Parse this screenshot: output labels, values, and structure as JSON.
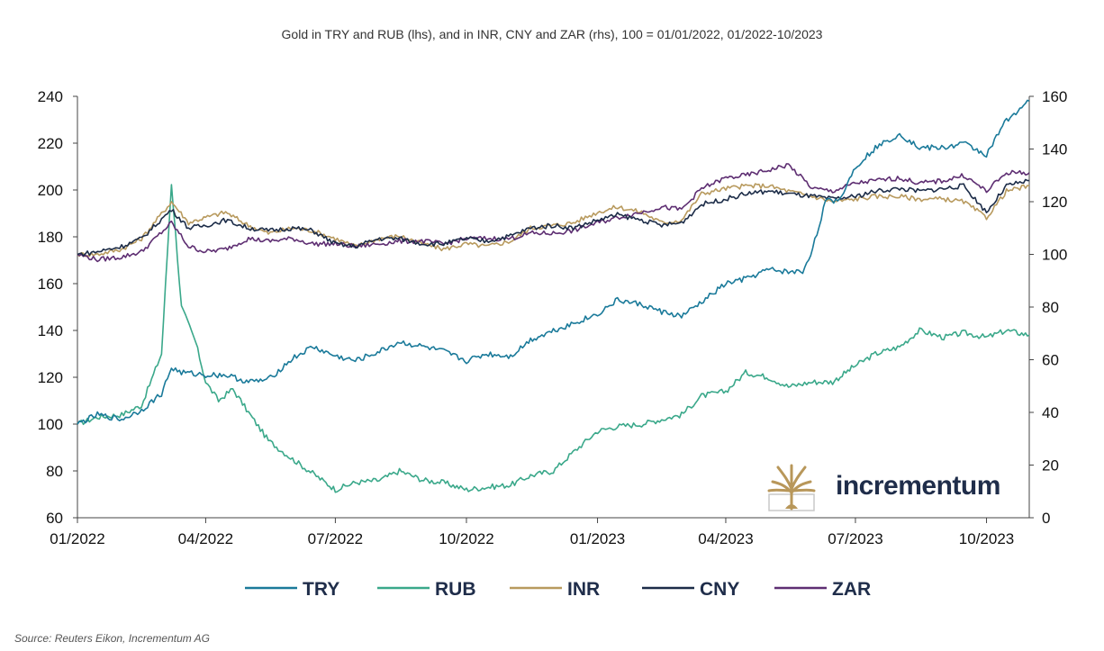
{
  "chart_data": {
    "type": "line",
    "title": "Gold in TRY and RUB (lhs), and in INR, CNY and ZAR (rhs), 100 = 01/01/2022, 01/2022-10/2023",
    "x_range": [
      "2022-01-01",
      "2023-10-31"
    ],
    "x_ticks": [
      {
        "date": "2022-01-01",
        "label": "01/2022"
      },
      {
        "date": "2022-04-01",
        "label": "04/2022"
      },
      {
        "date": "2022-07-01",
        "label": "07/2022"
      },
      {
        "date": "2022-10-01",
        "label": "10/2022"
      },
      {
        "date": "2023-01-01",
        "label": "01/2023"
      },
      {
        "date": "2023-04-01",
        "label": "04/2023"
      },
      {
        "date": "2023-07-01",
        "label": "07/2023"
      },
      {
        "date": "2023-10-01",
        "label": "10/2023"
      }
    ],
    "y_left": {
      "range": [
        60,
        240
      ],
      "ticks": [
        60,
        80,
        100,
        120,
        140,
        160,
        180,
        200,
        220,
        240
      ]
    },
    "y_right": {
      "range": [
        0,
        160
      ],
      "ticks": [
        0,
        20,
        40,
        60,
        80,
        100,
        120,
        140,
        160
      ]
    },
    "grid": false,
    "legend_position": "bottom",
    "series": [
      {
        "name": "TRY",
        "axis": "left",
        "color": "#1a7a9a",
        "points": [
          [
            "2022-01-01",
            100
          ],
          [
            "2022-01-15",
            104
          ],
          [
            "2022-02-01",
            102
          ],
          [
            "2022-02-15",
            106
          ],
          [
            "2022-03-01",
            113
          ],
          [
            "2022-03-08",
            124
          ],
          [
            "2022-03-15",
            122
          ],
          [
            "2022-04-01",
            121
          ],
          [
            "2022-04-15",
            121
          ],
          [
            "2022-05-01",
            118
          ],
          [
            "2022-05-15",
            119
          ],
          [
            "2022-06-01",
            128
          ],
          [
            "2022-06-15",
            133
          ],
          [
            "2022-07-01",
            129
          ],
          [
            "2022-07-15",
            127
          ],
          [
            "2022-08-01",
            131
          ],
          [
            "2022-08-15",
            135
          ],
          [
            "2022-09-01",
            133
          ],
          [
            "2022-09-15",
            131
          ],
          [
            "2022-10-01",
            127
          ],
          [
            "2022-10-15",
            130
          ],
          [
            "2022-11-01",
            129
          ],
          [
            "2022-11-15",
            136
          ],
          [
            "2022-12-01",
            140
          ],
          [
            "2022-12-15",
            143
          ],
          [
            "2023-01-01",
            147
          ],
          [
            "2023-01-15",
            153
          ],
          [
            "2023-02-01",
            151
          ],
          [
            "2023-02-15",
            148
          ],
          [
            "2023-03-01",
            146
          ],
          [
            "2023-03-15",
            152
          ],
          [
            "2023-04-01",
            160
          ],
          [
            "2023-04-15",
            162
          ],
          [
            "2023-05-01",
            166
          ],
          [
            "2023-05-15",
            165
          ],
          [
            "2023-05-25",
            165
          ],
          [
            "2023-06-01",
            175
          ],
          [
            "2023-06-10",
            195
          ],
          [
            "2023-06-20",
            196
          ],
          [
            "2023-07-01",
            210
          ],
          [
            "2023-07-15",
            218
          ],
          [
            "2023-08-01",
            224
          ],
          [
            "2023-08-15",
            218
          ],
          [
            "2023-09-01",
            218
          ],
          [
            "2023-09-15",
            220
          ],
          [
            "2023-10-01",
            215
          ],
          [
            "2023-10-15",
            230
          ],
          [
            "2023-10-31",
            238
          ]
        ]
      },
      {
        "name": "RUB",
        "axis": "left",
        "color": "#3aa88a",
        "points": [
          [
            "2022-01-01",
            100
          ],
          [
            "2022-01-15",
            103
          ],
          [
            "2022-02-01",
            104
          ],
          [
            "2022-02-15",
            108
          ],
          [
            "2022-03-01",
            130
          ],
          [
            "2022-03-08",
            203
          ],
          [
            "2022-03-15",
            150
          ],
          [
            "2022-03-25",
            135
          ],
          [
            "2022-04-01",
            118
          ],
          [
            "2022-04-10",
            110
          ],
          [
            "2022-04-20",
            115
          ],
          [
            "2022-05-01",
            105
          ],
          [
            "2022-05-15",
            93
          ],
          [
            "2022-06-01",
            85
          ],
          [
            "2022-06-15",
            79
          ],
          [
            "2022-07-01",
            72
          ],
          [
            "2022-07-15",
            75
          ],
          [
            "2022-08-01",
            76
          ],
          [
            "2022-08-15",
            80
          ],
          [
            "2022-09-01",
            76
          ],
          [
            "2022-09-15",
            75
          ],
          [
            "2022-10-01",
            72
          ],
          [
            "2022-10-15",
            73
          ],
          [
            "2022-11-01",
            74
          ],
          [
            "2022-11-15",
            78
          ],
          [
            "2022-12-01",
            80
          ],
          [
            "2022-12-15",
            88
          ],
          [
            "2023-01-01",
            97
          ],
          [
            "2023-01-15",
            99
          ],
          [
            "2023-02-01",
            100
          ],
          [
            "2023-02-15",
            102
          ],
          [
            "2023-03-01",
            104
          ],
          [
            "2023-03-15",
            112
          ],
          [
            "2023-04-01",
            114
          ],
          [
            "2023-04-15",
            122
          ],
          [
            "2023-05-01",
            120
          ],
          [
            "2023-05-15",
            116
          ],
          [
            "2023-06-01",
            118
          ],
          [
            "2023-06-15",
            118
          ],
          [
            "2023-07-01",
            125
          ],
          [
            "2023-07-15",
            130
          ],
          [
            "2023-08-01",
            133
          ],
          [
            "2023-08-15",
            140
          ],
          [
            "2023-09-01",
            137
          ],
          [
            "2023-09-15",
            139
          ],
          [
            "2023-10-01",
            137
          ],
          [
            "2023-10-15",
            140
          ],
          [
            "2023-10-31",
            138
          ]
        ]
      },
      {
        "name": "INR",
        "axis": "right",
        "color": "#b89a5e",
        "points": [
          [
            "2022-01-01",
            100
          ],
          [
            "2022-01-15",
            100
          ],
          [
            "2022-02-01",
            102
          ],
          [
            "2022-02-15",
            106
          ],
          [
            "2022-03-08",
            120
          ],
          [
            "2022-03-20",
            112
          ],
          [
            "2022-04-01",
            114
          ],
          [
            "2022-04-15",
            116
          ],
          [
            "2022-05-01",
            111
          ],
          [
            "2022-05-15",
            108
          ],
          [
            "2022-06-01",
            110
          ],
          [
            "2022-06-15",
            109
          ],
          [
            "2022-07-01",
            106
          ],
          [
            "2022-07-15",
            103
          ],
          [
            "2022-08-01",
            106
          ],
          [
            "2022-08-15",
            107
          ],
          [
            "2022-09-01",
            104
          ],
          [
            "2022-09-15",
            102
          ],
          [
            "2022-10-01",
            104
          ],
          [
            "2022-10-15",
            103
          ],
          [
            "2022-11-01",
            105
          ],
          [
            "2022-11-15",
            110
          ],
          [
            "2022-12-01",
            111
          ],
          [
            "2022-12-15",
            112
          ],
          [
            "2023-01-01",
            116
          ],
          [
            "2023-01-15",
            118
          ],
          [
            "2023-02-01",
            116
          ],
          [
            "2023-02-15",
            112
          ],
          [
            "2023-03-01",
            113
          ],
          [
            "2023-03-15",
            123
          ],
          [
            "2023-04-01",
            125
          ],
          [
            "2023-04-15",
            126
          ],
          [
            "2023-05-01",
            126
          ],
          [
            "2023-05-15",
            124
          ],
          [
            "2023-06-01",
            122
          ],
          [
            "2023-06-15",
            120
          ],
          [
            "2023-07-01",
            121
          ],
          [
            "2023-07-15",
            122
          ],
          [
            "2023-08-01",
            122
          ],
          [
            "2023-08-15",
            121
          ],
          [
            "2023-09-01",
            121
          ],
          [
            "2023-09-15",
            120
          ],
          [
            "2023-10-01",
            114
          ],
          [
            "2023-10-15",
            124
          ],
          [
            "2023-10-31",
            126
          ]
        ]
      },
      {
        "name": "CNY",
        "axis": "right",
        "color": "#1c2c48",
        "points": [
          [
            "2022-01-01",
            100
          ],
          [
            "2022-01-15",
            101
          ],
          [
            "2022-02-01",
            103
          ],
          [
            "2022-02-15",
            106
          ],
          [
            "2022-03-08",
            117
          ],
          [
            "2022-03-20",
            110
          ],
          [
            "2022-04-01",
            111
          ],
          [
            "2022-04-15",
            113
          ],
          [
            "2022-05-01",
            110
          ],
          [
            "2022-05-15",
            109
          ],
          [
            "2022-06-01",
            110
          ],
          [
            "2022-06-15",
            109
          ],
          [
            "2022-07-01",
            104
          ],
          [
            "2022-07-15",
            103
          ],
          [
            "2022-08-01",
            106
          ],
          [
            "2022-08-15",
            106
          ],
          [
            "2022-09-01",
            104
          ],
          [
            "2022-09-15",
            104
          ],
          [
            "2022-10-01",
            106
          ],
          [
            "2022-10-15",
            105
          ],
          [
            "2022-11-01",
            107
          ],
          [
            "2022-11-15",
            110
          ],
          [
            "2022-12-01",
            111
          ],
          [
            "2022-12-15",
            110
          ],
          [
            "2023-01-01",
            113
          ],
          [
            "2023-01-15",
            115
          ],
          [
            "2023-02-01",
            113
          ],
          [
            "2023-02-15",
            111
          ],
          [
            "2023-03-01",
            112
          ],
          [
            "2023-03-15",
            119
          ],
          [
            "2023-04-01",
            121
          ],
          [
            "2023-04-15",
            123
          ],
          [
            "2023-05-01",
            124
          ],
          [
            "2023-05-15",
            123
          ],
          [
            "2023-06-01",
            122
          ],
          [
            "2023-06-15",
            121
          ],
          [
            "2023-07-01",
            122
          ],
          [
            "2023-07-15",
            124
          ],
          [
            "2023-08-01",
            125
          ],
          [
            "2023-08-15",
            124
          ],
          [
            "2023-09-01",
            125
          ],
          [
            "2023-09-15",
            126
          ],
          [
            "2023-10-01",
            116
          ],
          [
            "2023-10-15",
            126
          ],
          [
            "2023-10-31",
            128
          ]
        ]
      },
      {
        "name": "ZAR",
        "axis": "right",
        "color": "#5e2e72",
        "points": [
          [
            "2022-01-01",
            100
          ],
          [
            "2022-01-15",
            98
          ],
          [
            "2022-02-01",
            99
          ],
          [
            "2022-02-15",
            101
          ],
          [
            "2022-03-08",
            112
          ],
          [
            "2022-03-20",
            103
          ],
          [
            "2022-04-01",
            101
          ],
          [
            "2022-04-15",
            102
          ],
          [
            "2022-05-01",
            106
          ],
          [
            "2022-05-15",
            105
          ],
          [
            "2022-06-01",
            106
          ],
          [
            "2022-06-15",
            104
          ],
          [
            "2022-07-01",
            104
          ],
          [
            "2022-07-15",
            103
          ],
          [
            "2022-08-01",
            104
          ],
          [
            "2022-08-15",
            105
          ],
          [
            "2022-09-01",
            105
          ],
          [
            "2022-09-15",
            104
          ],
          [
            "2022-10-01",
            106
          ],
          [
            "2022-10-15",
            106
          ],
          [
            "2022-11-01",
            106
          ],
          [
            "2022-11-15",
            108
          ],
          [
            "2022-12-01",
            108
          ],
          [
            "2022-12-15",
            109
          ],
          [
            "2023-01-01",
            112
          ],
          [
            "2023-01-15",
            114
          ],
          [
            "2023-02-01",
            116
          ],
          [
            "2023-02-15",
            118
          ],
          [
            "2023-03-01",
            117
          ],
          [
            "2023-03-15",
            125
          ],
          [
            "2023-04-01",
            129
          ],
          [
            "2023-04-15",
            130
          ],
          [
            "2023-05-01",
            132
          ],
          [
            "2023-05-15",
            134
          ],
          [
            "2023-06-01",
            125
          ],
          [
            "2023-06-15",
            124
          ],
          [
            "2023-07-01",
            127
          ],
          [
            "2023-07-15",
            128
          ],
          [
            "2023-08-01",
            129
          ],
          [
            "2023-08-15",
            127
          ],
          [
            "2023-09-01",
            128
          ],
          [
            "2023-09-15",
            130
          ],
          [
            "2023-10-01",
            124
          ],
          [
            "2023-10-15",
            131
          ],
          [
            "2023-10-31",
            131
          ]
        ]
      }
    ]
  },
  "source_text": "Source: Reuters Eikon, Incrementum AG",
  "logo": {
    "text": "incrementum",
    "icon": "tree-logo-icon",
    "gold": "#b8975a",
    "navy": "#1f2d4a"
  }
}
